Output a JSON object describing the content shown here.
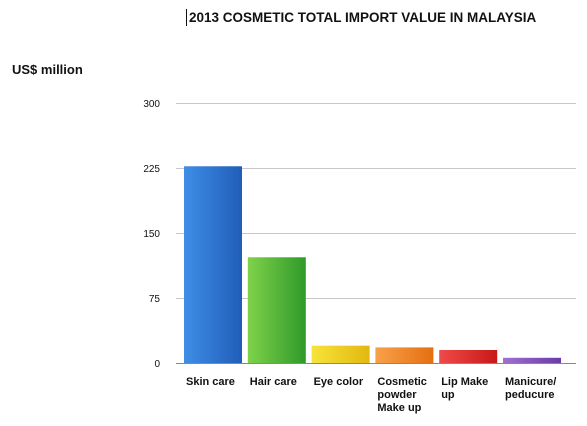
{
  "chart_data": {
    "type": "bar",
    "title": "2013 COSMETIC TOTAL IMPORT VALUE IN MALAYSIA",
    "ylabel": "US$ million",
    "xlabel": "",
    "categories": [
      "Skin care",
      "Hair care",
      "Eye color",
      "Cosmetic powder Make up",
      "Lip Make up",
      "Manicure/ peducure"
    ],
    "category_lines": [
      [
        "Skin care"
      ],
      [
        "Hair care"
      ],
      [
        "Eye color"
      ],
      [
        "Cosmetic",
        "powder",
        "Make up"
      ],
      [
        "Lip Make",
        "up"
      ],
      [
        "Manicure/",
        "peducure"
      ]
    ],
    "values": [
      227,
      122,
      20,
      18,
      15,
      6
    ],
    "ylim": [
      0,
      300
    ],
    "yticks": [
      0,
      75,
      150,
      225,
      300
    ],
    "ytick_labels": [
      "0",
      "75",
      "150",
      "225",
      "300"
    ],
    "grid": true,
    "colors": {
      "skin_care": [
        "#3f8ee6",
        "#1f5db8"
      ],
      "hair_care": [
        "#7fd24a",
        "#2f9a2a"
      ],
      "eye_color": [
        "#f6e43a",
        "#e2b810"
      ],
      "cosmetic_powder": [
        "#f7a24a",
        "#e56f10"
      ],
      "lip_make_up": [
        "#f04a4a",
        "#c81818"
      ],
      "manicure": [
        "#a070d0",
        "#6a3aa8"
      ],
      "grid": "#c8c8c8",
      "axis": "#888888"
    }
  }
}
